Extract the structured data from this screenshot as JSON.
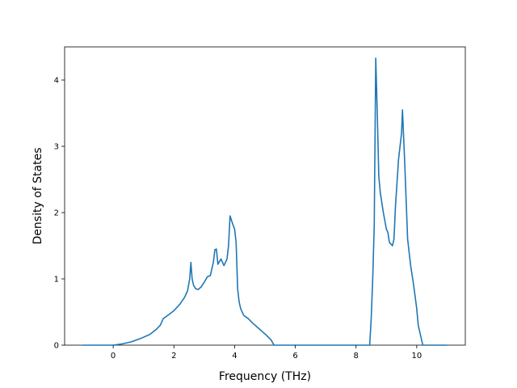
{
  "chart_data": {
    "type": "line",
    "title": "",
    "xlabel": "Frequency (THz)",
    "ylabel": "Density of States",
    "xlim": [
      -1.6,
      11.6
    ],
    "ylim": [
      0,
      4.5
    ],
    "xticks": [
      0,
      2,
      4,
      6,
      8,
      10
    ],
    "yticks": [
      0,
      1,
      2,
      3,
      4
    ],
    "xtick_labels": [
      "0",
      "2",
      "4",
      "6",
      "8",
      "10"
    ],
    "ytick_labels": [
      "0",
      "1",
      "2",
      "3",
      "4"
    ],
    "grid": false,
    "legend": "none",
    "series": [
      {
        "color": "#1f77b4",
        "x": [
          -1.0,
          -0.5,
          0.0,
          0.3,
          0.6,
          0.9,
          1.2,
          1.4,
          1.55,
          1.65,
          1.8,
          2.0,
          2.2,
          2.35,
          2.45,
          2.52,
          2.56,
          2.6,
          2.65,
          2.72,
          2.8,
          2.9,
          3.0,
          3.1,
          3.2,
          3.3,
          3.35,
          3.4,
          3.45,
          3.55,
          3.6,
          3.65,
          3.75,
          3.8,
          3.85,
          3.92,
          4.0,
          4.05,
          4.1,
          4.15,
          4.2,
          4.3,
          4.45,
          4.6,
          4.8,
          5.0,
          5.2,
          5.3,
          5.5,
          6.0,
          7.0,
          8.0,
          8.45,
          8.5,
          8.55,
          8.6,
          8.65,
          8.7,
          8.75,
          8.8,
          8.9,
          9.0,
          9.05,
          9.1,
          9.2,
          9.25,
          9.3,
          9.4,
          9.5,
          9.53,
          9.6,
          9.7,
          9.8,
          9.9,
          10.0,
          10.05,
          10.2,
          11.0
        ],
        "y": [
          0,
          0,
          0.0,
          0.02,
          0.05,
          0.1,
          0.16,
          0.23,
          0.3,
          0.4,
          0.45,
          0.52,
          0.62,
          0.72,
          0.82,
          1.0,
          1.25,
          1.0,
          0.9,
          0.85,
          0.84,
          0.88,
          0.95,
          1.03,
          1.05,
          1.25,
          1.44,
          1.45,
          1.22,
          1.3,
          1.25,
          1.2,
          1.3,
          1.5,
          1.95,
          1.85,
          1.75,
          1.55,
          0.85,
          0.65,
          0.55,
          0.45,
          0.4,
          0.33,
          0.25,
          0.17,
          0.08,
          0.0,
          0,
          0,
          0,
          0,
          0.0,
          0.4,
          1.0,
          1.8,
          4.33,
          3.5,
          2.55,
          2.3,
          2.0,
          1.75,
          1.7,
          1.55,
          1.5,
          1.6,
          2.1,
          2.8,
          3.2,
          3.55,
          2.8,
          1.6,
          1.2,
          0.9,
          0.55,
          0.3,
          0.0,
          0
        ]
      }
    ]
  }
}
